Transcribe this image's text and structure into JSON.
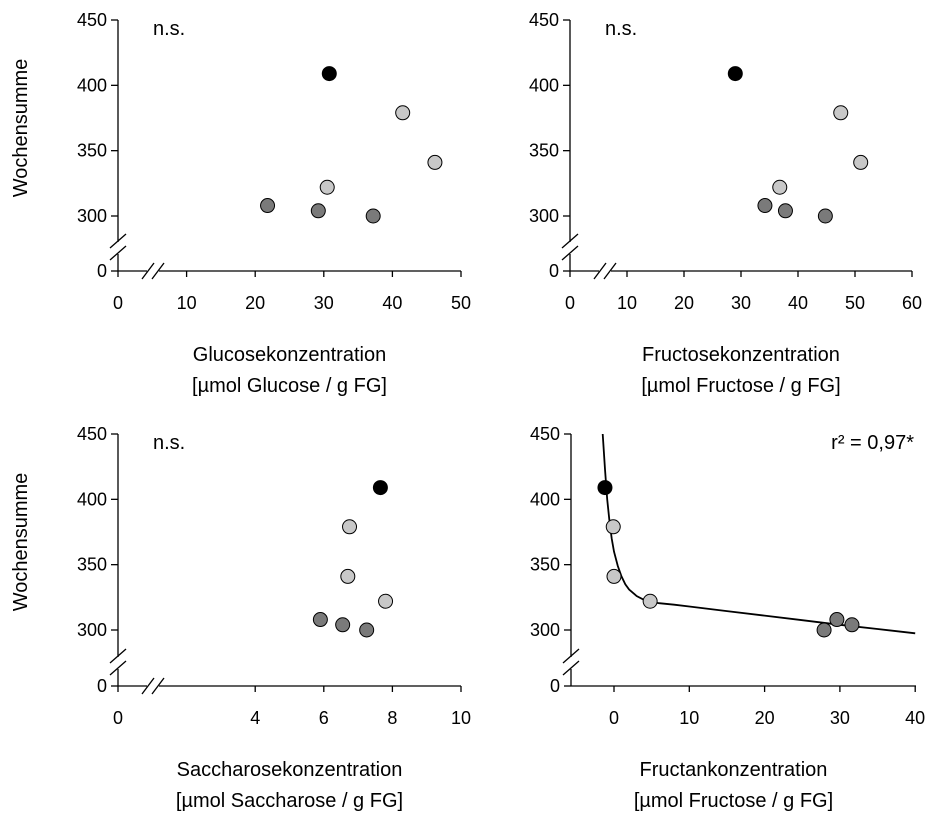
{
  "chart_data": [
    {
      "type": "scatter",
      "ylabel": "Wochensumme",
      "xlabel_line1": "Glucosekonzentration",
      "xlabel_line2": "[µmol Glucose / g FG]",
      "annotation": "n.s.",
      "xlim": [
        0,
        50
      ],
      "ylim": [
        300,
        450
      ],
      "x_ticks": [
        0,
        10,
        20,
        30,
        40,
        50
      ],
      "y_ticks": [
        0,
        300,
        350,
        400,
        450
      ],
      "x_axis_break": true,
      "y_axis_break": true,
      "points": [
        {
          "x": 30.8,
          "y": 409,
          "color": "#000000"
        },
        {
          "x": 41.5,
          "y": 379,
          "color": "#c8c8c8"
        },
        {
          "x": 46.2,
          "y": 341,
          "color": "#c8c8c8"
        },
        {
          "x": 30.5,
          "y": 322,
          "color": "#c8c8c8"
        },
        {
          "x": 21.8,
          "y": 308,
          "color": "#7a7a7a"
        },
        {
          "x": 29.2,
          "y": 304,
          "color": "#7a7a7a"
        },
        {
          "x": 37.2,
          "y": 300,
          "color": "#7a7a7a"
        }
      ]
    },
    {
      "type": "scatter",
      "ylabel": "",
      "xlabel_line1": "Fructosekonzentration",
      "xlabel_line2": "[µmol Fructose / g FG]",
      "annotation": "n.s.",
      "xlim": [
        0,
        60
      ],
      "ylim": [
        300,
        450
      ],
      "x_ticks": [
        0,
        10,
        20,
        30,
        40,
        50,
        60
      ],
      "y_ticks": [
        0,
        300,
        350,
        400,
        450
      ],
      "x_axis_break": true,
      "y_axis_break": true,
      "points": [
        {
          "x": 29.0,
          "y": 409,
          "color": "#000000"
        },
        {
          "x": 47.5,
          "y": 379,
          "color": "#c8c8c8"
        },
        {
          "x": 51.0,
          "y": 341,
          "color": "#c8c8c8"
        },
        {
          "x": 36.8,
          "y": 322,
          "color": "#c8c8c8"
        },
        {
          "x": 34.2,
          "y": 308,
          "color": "#7a7a7a"
        },
        {
          "x": 37.8,
          "y": 304,
          "color": "#7a7a7a"
        },
        {
          "x": 44.8,
          "y": 300,
          "color": "#7a7a7a"
        }
      ]
    },
    {
      "type": "scatter",
      "ylabel": "Wochensumme",
      "xlabel_line1": "Saccharosekonzentration",
      "xlabel_line2": "[µmol Saccharose / g FG]",
      "annotation": "n.s.",
      "xlim": [
        0,
        10
      ],
      "ylim": [
        300,
        450
      ],
      "x_ticks": [
        0,
        4,
        6,
        8,
        10
      ],
      "y_ticks": [
        0,
        300,
        350,
        400,
        450
      ],
      "x_axis_break": true,
      "y_axis_break": true,
      "points": [
        {
          "x": 7.65,
          "y": 409,
          "color": "#000000"
        },
        {
          "x": 6.75,
          "y": 379,
          "color": "#c8c8c8"
        },
        {
          "x": 6.7,
          "y": 341,
          "color": "#c8c8c8"
        },
        {
          "x": 7.8,
          "y": 322,
          "color": "#c8c8c8"
        },
        {
          "x": 5.9,
          "y": 308,
          "color": "#7a7a7a"
        },
        {
          "x": 6.55,
          "y": 304,
          "color": "#7a7a7a"
        },
        {
          "x": 7.25,
          "y": 300,
          "color": "#7a7a7a"
        }
      ]
    },
    {
      "type": "scatter",
      "ylabel": "",
      "xlabel_line1": "Fructankonzentration",
      "xlabel_line2": "[µmol Fructose / g FG]",
      "annotation": "r² = 0,97*",
      "xlim": [
        -5,
        40
      ],
      "ylim": [
        300,
        450
      ],
      "x_ticks": [
        0,
        10,
        20,
        30,
        40
      ],
      "y_ticks": [
        0,
        300,
        350,
        400,
        450
      ],
      "x_axis_break": false,
      "y_axis_break": true,
      "points": [
        {
          "x": -1.2,
          "y": 409,
          "color": "#000000"
        },
        {
          "x": -0.1,
          "y": 379,
          "color": "#c8c8c8"
        },
        {
          "x": 0.0,
          "y": 341,
          "color": "#c8c8c8"
        },
        {
          "x": 4.8,
          "y": 322,
          "color": "#c8c8c8"
        },
        {
          "x": 29.6,
          "y": 308,
          "color": "#7a7a7a"
        },
        {
          "x": 31.6,
          "y": 304,
          "color": "#7a7a7a"
        },
        {
          "x": 27.9,
          "y": 300,
          "color": "#7a7a7a"
        }
      ],
      "fit_curve": [
        [
          -1.5,
          450
        ],
        [
          -1.2,
          423
        ],
        [
          -0.9,
          400
        ],
        [
          -0.6,
          383
        ],
        [
          -0.3,
          370
        ],
        [
          0,
          360
        ],
        [
          0.5,
          349
        ],
        [
          1,
          341
        ],
        [
          1.5,
          335
        ],
        [
          2,
          331
        ],
        [
          3,
          326
        ],
        [
          4,
          323
        ],
        [
          5,
          321.5
        ],
        [
          6,
          320.5
        ],
        [
          8,
          319.4
        ],
        [
          10,
          318
        ],
        [
          15,
          314.5
        ],
        [
          20,
          311
        ],
        [
          25,
          307.5
        ],
        [
          30,
          304
        ],
        [
          35,
          300.8
        ],
        [
          40,
          297.5
        ]
      ]
    }
  ]
}
